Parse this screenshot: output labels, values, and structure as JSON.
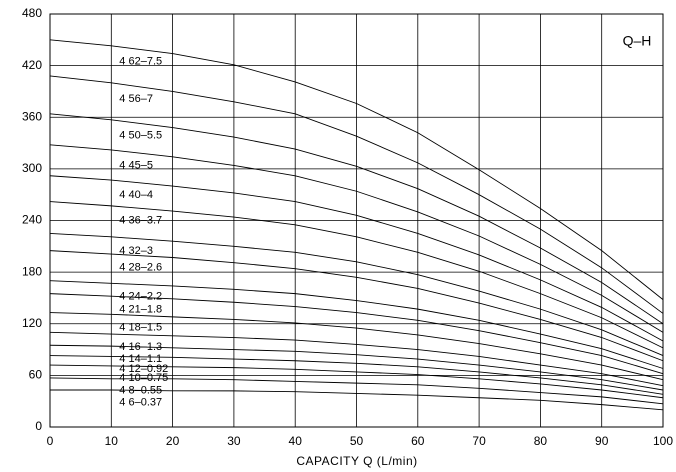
{
  "chart_data": {
    "type": "line",
    "tag": "Q–H",
    "xlabel": "CAPACITY  Q (L/min)",
    "x": [
      0,
      10,
      20,
      30,
      40,
      50,
      60,
      70,
      80,
      90,
      100
    ],
    "xlim": [
      0,
      100
    ],
    "xticks": [
      0,
      10,
      20,
      30,
      40,
      50,
      60,
      70,
      80,
      90,
      100
    ],
    "ylim": [
      0,
      480
    ],
    "yticks": [
      0,
      60,
      120,
      180,
      240,
      300,
      360,
      420,
      480
    ],
    "grid": true,
    "series": [
      {
        "name": "4 62–7.5",
        "color": "#000000",
        "values": [
          450,
          443,
          434,
          421,
          401,
          376,
          342,
          299,
          254,
          205,
          148
        ]
      },
      {
        "name": "4 56–7",
        "color": "#000000",
        "values": [
          408,
          400,
          390,
          378,
          364,
          338,
          307,
          270,
          230,
          185,
          132
        ]
      },
      {
        "name": "4 50–5.5",
        "color": "#000000",
        "values": [
          364,
          357,
          348,
          337,
          323,
          303,
          277,
          245,
          208,
          168,
          120
        ]
      },
      {
        "name": "4 45–5",
        "color": "#000000",
        "values": [
          328,
          322,
          314,
          304,
          292,
          274,
          250,
          222,
          189,
          153,
          110
        ]
      },
      {
        "name": "4 40–4",
        "color": "#000000",
        "values": [
          292,
          287,
          280,
          272,
          262,
          246,
          225,
          200,
          171,
          139,
          100
        ]
      },
      {
        "name": "4 36–3.7",
        "color": "#000000",
        "values": [
          262,
          257,
          251,
          244,
          235,
          221,
          203,
          181,
          155,
          127,
          92
        ]
      },
      {
        "name": "4 32–3",
        "color": "#000000",
        "values": [
          225,
          221,
          216,
          210,
          203,
          192,
          177,
          158,
          137,
          113,
          83
        ]
      },
      {
        "name": "4 28–2.6",
        "color": "#000000",
        "values": [
          205,
          201,
          197,
          191,
          184,
          174,
          161,
          144,
          125,
          104,
          77
        ]
      },
      {
        "name": "4 24–2.2",
        "color": "#000000",
        "values": [
          170,
          167,
          164,
          160,
          155,
          147,
          137,
          124,
          108,
          91,
          68
        ]
      },
      {
        "name": "4 21–1.8",
        "color": "#000000",
        "values": [
          155,
          152,
          149,
          145,
          140,
          133,
          124,
          112,
          98,
          83,
          62
        ]
      },
      {
        "name": "4 18–1.5",
        "color": "#000000",
        "values": [
          133,
          131,
          128,
          125,
          121,
          115,
          107,
          97,
          85,
          72,
          55
        ]
      },
      {
        "name": "4 16–1.3",
        "color": "#000000",
        "values": [
          110,
          108,
          106,
          104,
          101,
          96,
          90,
          82,
          72,
          62,
          48
        ]
      },
      {
        "name": "4 14–1.1",
        "color": "#000000",
        "values": [
          95,
          94,
          92,
          90,
          88,
          84,
          79,
          72,
          64,
          55,
          43
        ]
      },
      {
        "name": "4 12–0.92",
        "color": "#000000",
        "values": [
          83,
          82,
          81,
          79,
          77,
          74,
          70,
          64,
          57,
          49,
          38
        ]
      },
      {
        "name": "4 10–0.75",
        "color": "#000000",
        "values": [
          72,
          71,
          70,
          69,
          67,
          64,
          61,
          56,
          50,
          43,
          34
        ]
      },
      {
        "name": "4 8–0.55",
        "color": "#000000",
        "values": [
          57,
          56,
          56,
          55,
          53,
          51,
          49,
          45,
          40,
          35,
          27
        ]
      },
      {
        "name": "4 6–0.37",
        "color": "#000000",
        "values": [
          43,
          43,
          42,
          42,
          41,
          39,
          37,
          34,
          31,
          26,
          20
        ]
      }
    ]
  }
}
